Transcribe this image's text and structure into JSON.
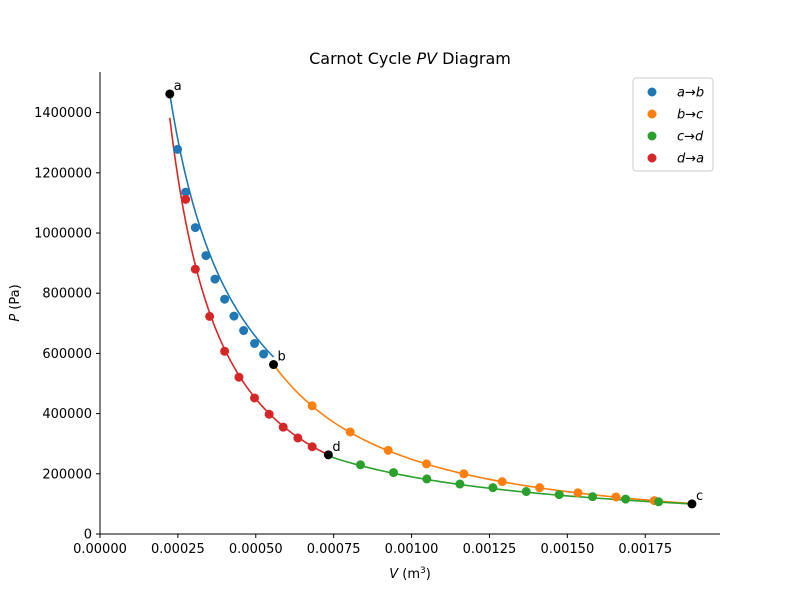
{
  "chart_data": {
    "type": "scatter",
    "title": "Carnot Cycle PV Diagram",
    "title_parts": {
      "pre": "Carnot Cycle ",
      "italic": "PV",
      "post": " Diagram"
    },
    "xlabel": "V (m3)",
    "xlabel_parts": {
      "var": "V",
      "unit_pre": " (m",
      "sup": "3",
      "unit_post": ")"
    },
    "ylabel": "P (Pa)",
    "ylabel_parts": {
      "var": "P",
      "unit": " (Pa)"
    },
    "xlim": [
      0,
      0.00199
    ],
    "ylim": [
      0,
      1535000
    ],
    "xticks": [
      0,
      0.00025,
      0.0005,
      0.00075,
      0.001,
      0.00125,
      0.0015,
      0.00175
    ],
    "xtick_labels": [
      "0.00000",
      "0.00025",
      "0.00050",
      "0.00075",
      "0.00100",
      "0.00125",
      "0.00150",
      "0.00175"
    ],
    "yticks": [
      0,
      200000,
      400000,
      600000,
      800000,
      1000000,
      1200000,
      1400000
    ],
    "ytick_labels": [
      "0",
      "200000",
      "400000",
      "600000",
      "800000",
      "1000000",
      "1200000",
      "1400000"
    ],
    "grid": false,
    "legend_position": "top-right",
    "state_points": [
      {
        "label": "a",
        "x": 0.000224,
        "y": 1462000
      },
      {
        "label": "b",
        "x": 0.000557,
        "y": 563000
      },
      {
        "label": "c",
        "x": 0.0019,
        "y": 100000
      },
      {
        "label": "d",
        "x": 0.000733,
        "y": 263000
      }
    ],
    "series": [
      {
        "name": "a→b",
        "color": "#1f77b4",
        "curve": {
          "kind": "power",
          "exponent": 1.0,
          "x_from": 0.000224,
          "x_to": 0.000557,
          "y_ref": 1462000,
          "x_ref": 0.000224
        },
        "x": [
          0.000249,
          0.000275,
          0.000306,
          0.00034,
          0.000369,
          0.0004,
          0.00043,
          0.000461,
          0.000496,
          0.000525
        ],
        "y": [
          1278000,
          1136000,
          1018000,
          925000,
          847000,
          780000,
          724000,
          676000,
          633000,
          598000
        ]
      },
      {
        "name": "b→c",
        "color": "#ff7f0e",
        "curve": {
          "kind": "power",
          "exponent": 1.4,
          "x_from": 0.000557,
          "x_to": 0.0019,
          "y_ref": 563000,
          "x_ref": 0.000557
        },
        "x": [
          0.000681,
          0.000803,
          0.000925,
          0.001048,
          0.001168,
          0.001291,
          0.001411,
          0.001534,
          0.001656,
          0.001779
        ],
        "y": [
          426000,
          339000,
          278000,
          233000,
          200000,
          174000,
          154000,
          137000,
          123000,
          111000
        ]
      },
      {
        "name": "c→d",
        "color": "#2ca02c",
        "curve": {
          "kind": "power",
          "exponent": 1.0,
          "x_from": 0.000733,
          "x_to": 0.0019,
          "y_ref": 100000,
          "x_ref": 0.0019
        },
        "x": [
          0.000836,
          0.000942,
          0.001049,
          0.001155,
          0.001261,
          0.001368,
          0.001474,
          0.001581,
          0.001687,
          0.001793
        ],
        "y": [
          230000,
          204000,
          183000,
          166000,
          154000,
          141000,
          131000,
          124000,
          116000,
          107000
        ]
      },
      {
        "name": "d→a",
        "color": "#d62728",
        "curve": {
          "kind": "power",
          "exponent": 1.4,
          "x_from": 0.000224,
          "x_to": 0.000733,
          "y_ref": 263000,
          "x_ref": 0.000733
        },
        "x": [
          0.000275,
          0.000306,
          0.000352,
          0.0004,
          0.000446,
          0.000496,
          0.000543,
          0.000588,
          0.000635,
          0.000681
        ],
        "y": [
          1112000,
          880000,
          723000,
          607000,
          521000,
          452000,
          398000,
          355000,
          319000,
          290000
        ]
      }
    ]
  }
}
